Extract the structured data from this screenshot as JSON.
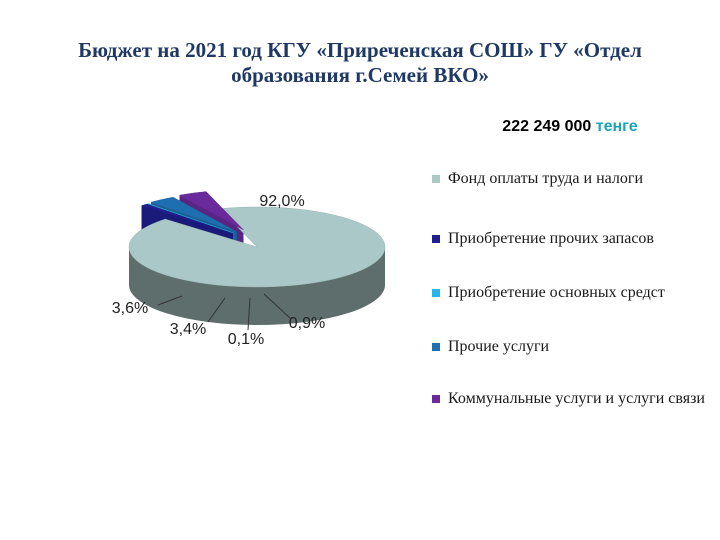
{
  "slide": {
    "title": "Бюджет на 2021 год КГУ «Приреченская СОШ» ГУ «Отдел образования г.Семей ВКО»",
    "total_amount": "222 249 000",
    "total_unit": "тенге"
  },
  "chart_data": {
    "type": "pie",
    "title": "Бюджет на 2021 год КГУ «Приреченская СОШ» ГУ «Отдел образования г.Семей ВКО»",
    "categories": [
      "Фонд оплаты труда и налоги",
      "Приобретение прочих запасов",
      "Приобретение основных средст",
      "Прочие услуги",
      "Коммунальные услуги и услуги связи"
    ],
    "values": [
      92.0,
      0.9,
      0.1,
      3.4,
      3.6
    ],
    "value_labels": [
      "92,0%",
      "0,9%",
      "0,1%",
      "3,4%",
      "3,6%"
    ],
    "colors": [
      "#a9c8c7",
      "#1f1f8f",
      "#29b6e6",
      "#1f6fb0",
      "#6a2a9c"
    ],
    "legend_position": "right",
    "three_d": true,
    "exploded": [
      false,
      true,
      true,
      true,
      true
    ]
  }
}
